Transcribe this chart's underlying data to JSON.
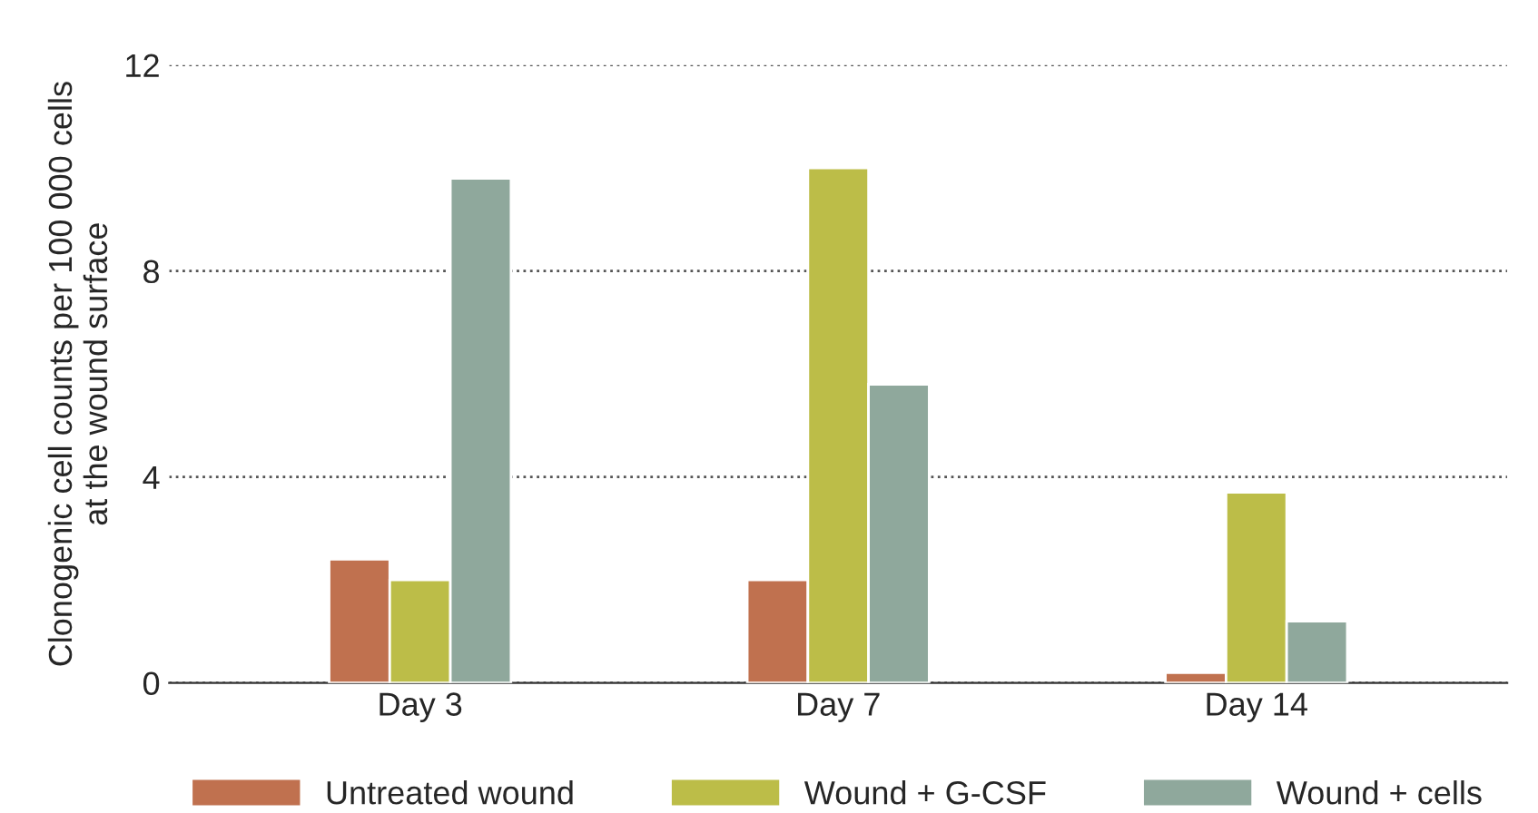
{
  "chart_data": {
    "type": "bar",
    "ylabel": "Clonogenic cell counts per 100 000 cells\nat the wound surface",
    "categories": [
      "Day 3",
      "Day 7",
      "Day 14"
    ],
    "series": [
      {
        "name": "Untreated wound",
        "color": "#c0714f",
        "values": [
          2.4,
          2.0,
          0.2
        ]
      },
      {
        "name": "Wound + G-CSF",
        "color": "#bcbd48",
        "values": [
          2.0,
          10.0,
          3.7
        ]
      },
      {
        "name": "Wound + cells",
        "color": "#8fa89c",
        "values": [
          9.8,
          5.8,
          1.2
        ]
      }
    ],
    "ylim": [
      0,
      12
    ],
    "yticks": [
      0,
      4,
      8,
      12
    ],
    "grid": "y",
    "legend": "bottom"
  }
}
